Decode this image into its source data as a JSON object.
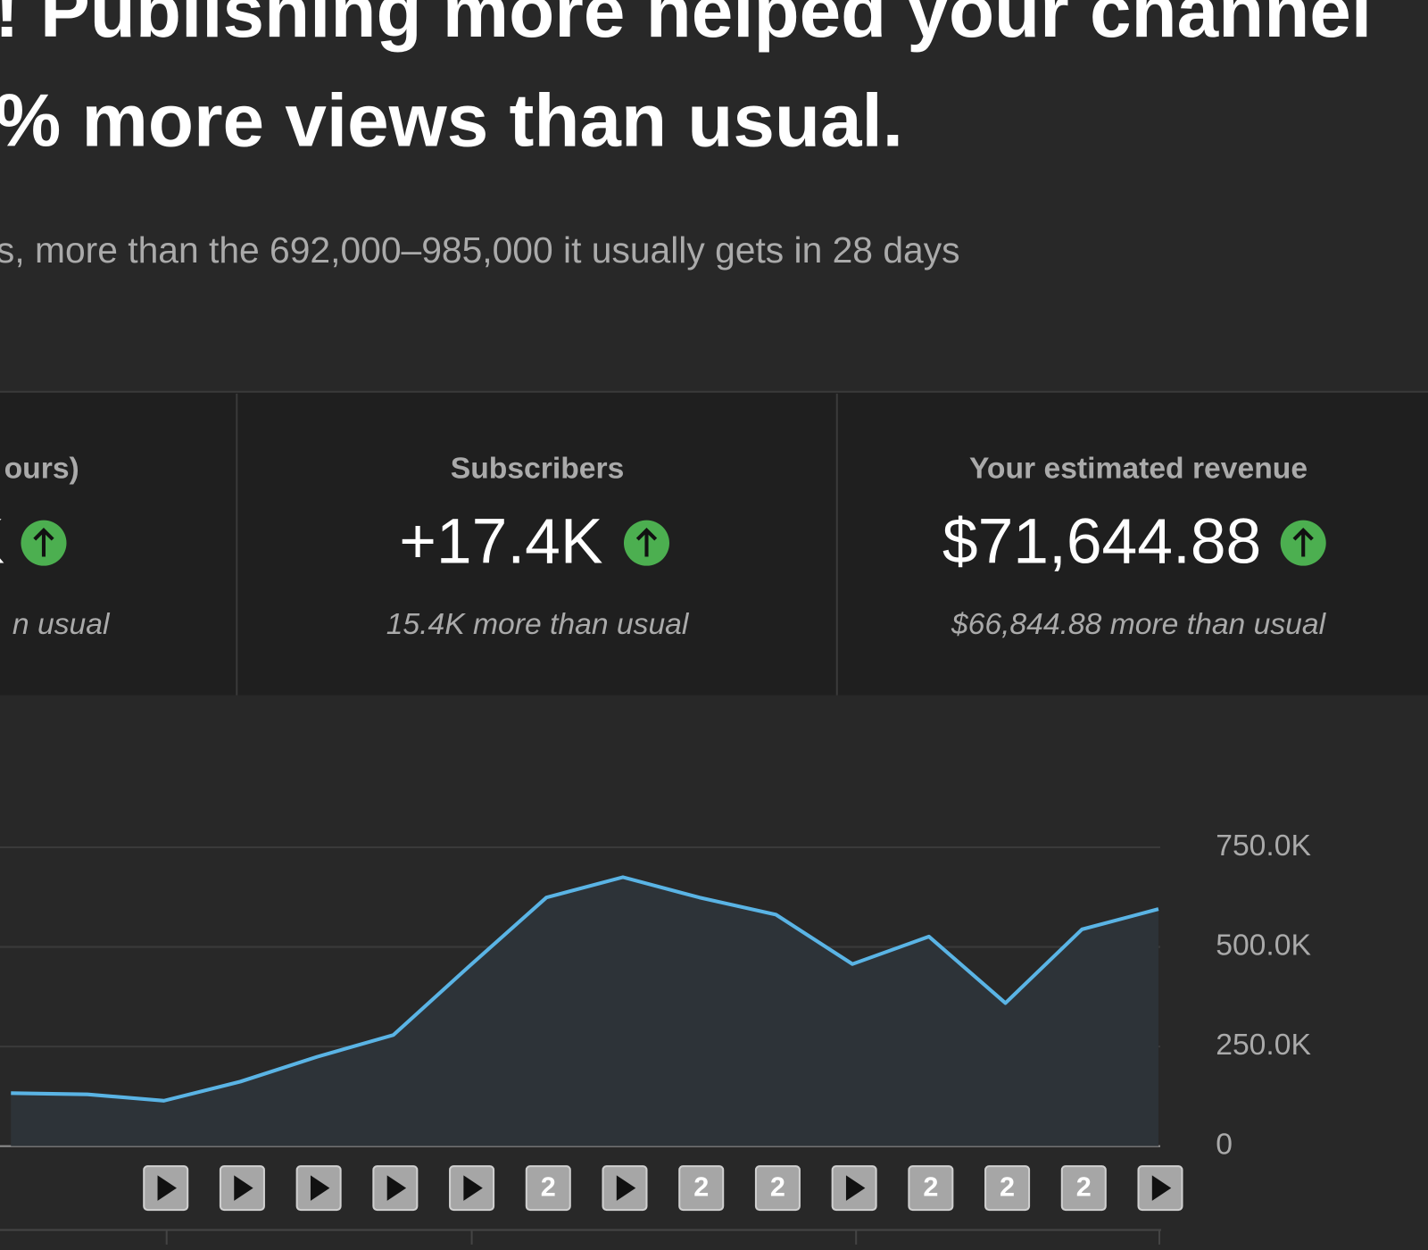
{
  "header": {
    "title_lines": [
      "! Publishing more helped your channel",
      "% more views than usual."
    ],
    "subtitle": "s, more than the 692,000–985,000 it usually gets in 28 days"
  },
  "metrics": [
    {
      "title": "ours)",
      "value": "K",
      "note": "n usual"
    },
    {
      "title": "Subscribers",
      "value": "+17.4K",
      "note": "15.4K more than usual"
    },
    {
      "title": "Your estimated revenue",
      "value": "$71,644.88",
      "note": "$66,844.88 more than usual"
    }
  ],
  "chart_data": {
    "type": "area",
    "categories": [
      null,
      null,
      null,
      null,
      null,
      null,
      null,
      null,
      null,
      null,
      null,
      null,
      null,
      null,
      null,
      null
    ],
    "values": [
      133000,
      130000,
      114000,
      162000,
      224000,
      279000,
      453000,
      624000,
      675000,
      624000,
      581000,
      457000,
      526000,
      359000,
      544000,
      595000
    ],
    "color": "#5ab4e5",
    "ylim": [
      0,
      750000
    ],
    "yticks": [
      0,
      {
        "value": 250000,
        "label": "250.0K"
      },
      {
        "value": 500000,
        "label": "500.0K"
      },
      {
        "value": 750000,
        "label": "750.0K"
      }
    ],
    "grid": true,
    "video_markers": [
      null,
      null,
      null,
      null,
      null,
      null,
      null,
      "2",
      null,
      "2",
      "2",
      null,
      "2",
      "2",
      "2",
      null
    ]
  }
}
